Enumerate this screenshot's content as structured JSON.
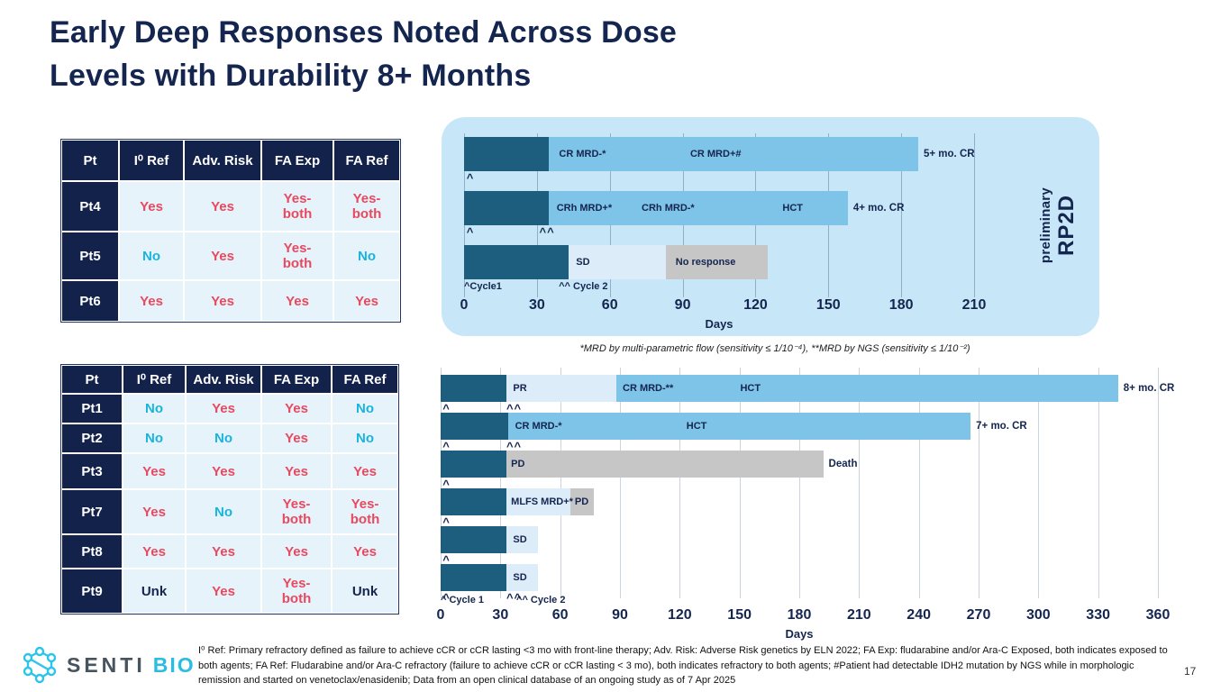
{
  "slide": {
    "title_line1": "Early Deep Responses Noted Across Dose",
    "title_line2": "Levels with Durability 8+ Months",
    "page_number": "17",
    "mrd_footnote": "*MRD by multi-parametric flow  (sensitivity ≤ 1/10⁻⁴), **MRD by NGS (sensitivity ≤ 1/10⁻²)",
    "footnote": "I⁰ Ref: Primary refractory defined as failure to achieve cCR or cCR lasting <3 mo with front-line therapy; Adv. Risk: Adverse Risk genetics by ELN 2022; FA Exp: fludarabine and/or Ara-C Exposed, both indicates exposed to both agents; FA Ref: Fludarabine and/or Ara-C refractory (failure to achieve cCR or cCR lasting < 3 mo), both indicates refractory to both agents; #Patient had detectable IDH2 mutation by NGS while in morphologic remission and started on venetoclax/enasidenib; Data from an open clinical database of an ongoing study as of 7 Apr 2025"
  },
  "logo": {
    "senti": "SENTI",
    "bio": "BIO"
  },
  "colors": {
    "navy": "#14254f",
    "red": "#e8495f",
    "cyan": "#18b4de",
    "dark": "#1d5d7d",
    "mid": "#7ec3e8",
    "light": "#dcecf8",
    "gray": "#c6c6c6",
    "panel": "#c7e6f7",
    "cell": "#e6f3fb"
  },
  "tables": [
    {
      "name": "rp2d-cohort",
      "columns": [
        "Pt",
        "I⁰ Ref",
        "Adv. Risk",
        "FA Exp",
        "FA Ref"
      ],
      "rows": [
        {
          "pt": "Pt4",
          "cells": [
            [
              "Yes",
              "red"
            ],
            [
              "Yes",
              "red"
            ],
            [
              "Yes-\nboth",
              "red"
            ],
            [
              "Yes-\nboth",
              "red"
            ]
          ]
        },
        {
          "pt": "Pt5",
          "cells": [
            [
              "No",
              "cyan"
            ],
            [
              "Yes",
              "red"
            ],
            [
              "Yes-\nboth",
              "red"
            ],
            [
              "No",
              "cyan"
            ]
          ]
        },
        {
          "pt": "Pt6",
          "cells": [
            [
              "Yes",
              "red"
            ],
            [
              "Yes",
              "red"
            ],
            [
              "Yes",
              "red"
            ],
            [
              "Yes",
              "red"
            ]
          ]
        }
      ]
    },
    {
      "name": "dose-escalation-cohort",
      "columns": [
        "Pt",
        "I⁰ Ref",
        "Adv. Risk",
        "FA Exp",
        "FA Ref"
      ],
      "rows": [
        {
          "pt": "Pt1",
          "cells": [
            [
              "No",
              "cyan"
            ],
            [
              "Yes",
              "red"
            ],
            [
              "Yes",
              "red"
            ],
            [
              "No",
              "cyan"
            ]
          ]
        },
        {
          "pt": "Pt2",
          "cells": [
            [
              "No",
              "cyan"
            ],
            [
              "No",
              "cyan"
            ],
            [
              "Yes",
              "red"
            ],
            [
              "No",
              "cyan"
            ]
          ]
        },
        {
          "pt": "Pt3",
          "cells": [
            [
              "Yes",
              "red"
            ],
            [
              "Yes",
              "red"
            ],
            [
              "Yes",
              "red"
            ],
            [
              "Yes",
              "red"
            ]
          ]
        },
        {
          "pt": "Pt7",
          "cells": [
            [
              "Yes",
              "red"
            ],
            [
              "No",
              "cyan"
            ],
            [
              "Yes-\nboth",
              "red"
            ],
            [
              "Yes-\nboth",
              "red"
            ]
          ]
        },
        {
          "pt": "Pt8",
          "cells": [
            [
              "Yes",
              "red"
            ],
            [
              "Yes",
              "red"
            ],
            [
              "Yes",
              "red"
            ],
            [
              "Yes",
              "red"
            ]
          ]
        },
        {
          "pt": "Pt9",
          "cells": [
            [
              "Unk",
              "navy"
            ],
            [
              "Yes",
              "red"
            ],
            [
              "Yes-\nboth",
              "red"
            ],
            [
              "Unk",
              "navy"
            ]
          ]
        }
      ]
    }
  ],
  "chart_data": [
    {
      "type": "swimmer",
      "name": "preliminary RP2D cohort swimmer plot",
      "panel_label_top": "preliminary",
      "panel_label_main": "RP2D",
      "xlabel": "Days",
      "xlim": [
        0,
        210
      ],
      "xticks": [
        0,
        30,
        60,
        90,
        120,
        150,
        180,
        210
      ],
      "bars": [
        {
          "segments": [
            {
              "x0": 0,
              "x1": 35,
              "c": "dark"
            },
            {
              "x0": 35,
              "x1": 187,
              "c": "mid"
            }
          ],
          "labels": [
            {
              "t": "CR MRD-*",
              "x": 38
            },
            {
              "t": "CR MRD+#",
              "x": 92
            }
          ],
          "end": "5+ mo. CR",
          "carets": [
            {
              "t": "^",
              "x": 1
            }
          ]
        },
        {
          "segments": [
            {
              "x0": 0,
              "x1": 35,
              "c": "dark"
            },
            {
              "x0": 35,
              "x1": 158,
              "c": "mid"
            }
          ],
          "labels": [
            {
              "t": "CRh MRD+*",
              "x": 37
            },
            {
              "t": "CRh MRD-*",
              "x": 72
            },
            {
              "t": "HCT",
              "x": 130
            }
          ],
          "end": "4+ mo. CR",
          "carets": [
            {
              "t": "^",
              "x": 1
            },
            {
              "t": "^^",
              "x": 31
            }
          ]
        },
        {
          "segments": [
            {
              "x0": 0,
              "x1": 43,
              "c": "dark"
            },
            {
              "x0": 43,
              "x1": 83,
              "c": "light"
            },
            {
              "x0": 83,
              "x1": 125,
              "c": "gray"
            }
          ],
          "labels": [
            {
              "t": "SD",
              "x": 45
            },
            {
              "t": "No response",
              "x": 86
            }
          ],
          "end": "",
          "carets": []
        }
      ],
      "cycle_labels": [
        {
          "t": "^Cycle1",
          "x": 0
        },
        {
          "t": "^^ Cycle 2",
          "x": 39
        }
      ]
    },
    {
      "type": "swimmer",
      "name": "dose escalation cohort swimmer plot",
      "xlabel": "Days",
      "xlim": [
        0,
        360
      ],
      "xticks": [
        0,
        30,
        60,
        90,
        120,
        150,
        180,
        210,
        240,
        270,
        300,
        330,
        360
      ],
      "bars": [
        {
          "segments": [
            {
              "x0": 0,
              "x1": 33,
              "c": "dark"
            },
            {
              "x0": 33,
              "x1": 88,
              "c": "light"
            },
            {
              "x0": 88,
              "x1": 340,
              "c": "mid"
            }
          ],
          "labels": [
            {
              "t": "PR",
              "x": 35
            },
            {
              "t": "CR MRD-**",
              "x": 90
            },
            {
              "t": "HCT",
              "x": 149
            }
          ],
          "end": "8+ mo. CR",
          "carets": [
            {
              "t": "^",
              "x": 1
            },
            {
              "t": "^^",
              "x": 33
            }
          ]
        },
        {
          "segments": [
            {
              "x0": 0,
              "x1": 34,
              "c": "dark"
            },
            {
              "x0": 34,
              "x1": 266,
              "c": "mid"
            }
          ],
          "labels": [
            {
              "t": "CR MRD-*",
              "x": 36
            },
            {
              "t": "HCT",
              "x": 122
            }
          ],
          "end": "7+ mo. CR",
          "carets": [
            {
              "t": "^",
              "x": 1
            },
            {
              "t": "^^",
              "x": 33
            }
          ]
        },
        {
          "segments": [
            {
              "x0": 0,
              "x1": 33,
              "c": "dark"
            },
            {
              "x0": 33,
              "x1": 192,
              "c": "gray"
            }
          ],
          "labels": [
            {
              "t": "PD",
              "x": 34
            }
          ],
          "end": "Death",
          "carets": [
            {
              "t": "^",
              "x": 1
            }
          ]
        },
        {
          "segments": [
            {
              "x0": 0,
              "x1": 33,
              "c": "dark"
            },
            {
              "x0": 33,
              "x1": 65,
              "c": "light"
            },
            {
              "x0": 65,
              "x1": 77,
              "c": "gray"
            }
          ],
          "labels": [
            {
              "t": "MLFS MRD+*",
              "x": 34
            },
            {
              "t": "PD",
              "x": 66
            }
          ],
          "end": "",
          "carets": [
            {
              "t": "^",
              "x": 1
            }
          ]
        },
        {
          "segments": [
            {
              "x0": 0,
              "x1": 33,
              "c": "dark"
            },
            {
              "x0": 33,
              "x1": 49,
              "c": "light"
            }
          ],
          "labels": [
            {
              "t": "SD",
              "x": 35
            }
          ],
          "end": "",
          "carets": [
            {
              "t": "^",
              "x": 1
            }
          ]
        },
        {
          "segments": [
            {
              "x0": 0,
              "x1": 33,
              "c": "dark"
            },
            {
              "x0": 33,
              "x1": 49,
              "c": "light"
            }
          ],
          "labels": [
            {
              "t": "SD",
              "x": 35
            }
          ],
          "end": "",
          "carets": [
            {
              "t": "^",
              "x": 1
            },
            {
              "t": "^^",
              "x": 33
            }
          ]
        }
      ],
      "cycle_labels": [
        {
          "t": "^ Cycle 1",
          "x": 0
        },
        {
          "t": "^^ Cycle 2",
          "x": 38
        }
      ]
    }
  ]
}
